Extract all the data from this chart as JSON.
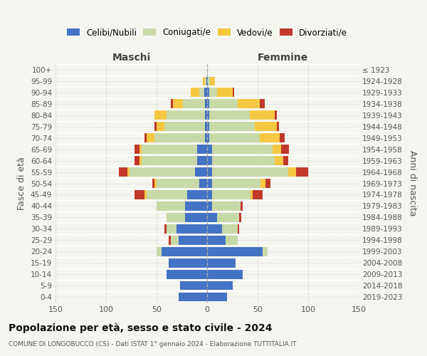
{
  "age_groups_bottom_to_top": [
    "0-4",
    "5-9",
    "10-14",
    "15-19",
    "20-24",
    "25-29",
    "30-34",
    "35-39",
    "40-44",
    "45-49",
    "50-54",
    "55-59",
    "60-64",
    "65-69",
    "70-74",
    "75-79",
    "80-84",
    "85-89",
    "90-94",
    "95-99",
    "100+"
  ],
  "birth_years_bottom_to_top": [
    "2019-2023",
    "2014-2018",
    "2009-2013",
    "2004-2008",
    "1999-2003",
    "1994-1998",
    "1989-1993",
    "1984-1988",
    "1979-1983",
    "1974-1978",
    "1969-1973",
    "1964-1968",
    "1959-1963",
    "1954-1958",
    "1949-1953",
    "1944-1948",
    "1939-1943",
    "1934-1938",
    "1929-1933",
    "1924-1928",
    "≤ 1923"
  ],
  "colors": {
    "celibi": "#4472c4",
    "coniugati": "#c8d9a8",
    "vedovi": "#f5c842",
    "divorziati": "#c0392b"
  },
  "males": {
    "celibi": [
      28,
      27,
      40,
      38,
      45,
      28,
      30,
      22,
      22,
      20,
      8,
      12,
      10,
      10,
      2,
      2,
      2,
      2,
      3,
      1,
      0
    ],
    "coniugati": [
      0,
      0,
      0,
      0,
      5,
      8,
      10,
      18,
      28,
      40,
      42,
      65,
      55,
      55,
      50,
      40,
      38,
      22,
      5,
      1,
      0
    ],
    "vedovi": [
      0,
      0,
      0,
      0,
      0,
      0,
      0,
      0,
      0,
      2,
      2,
      2,
      2,
      2,
      8,
      8,
      12,
      10,
      8,
      2,
      0
    ],
    "divorziati": [
      0,
      0,
      0,
      0,
      0,
      2,
      2,
      0,
      0,
      10,
      2,
      8,
      5,
      5,
      2,
      2,
      0,
      2,
      0,
      0,
      0
    ]
  },
  "females": {
    "nubili": [
      20,
      25,
      35,
      28,
      55,
      18,
      15,
      10,
      5,
      5,
      5,
      5,
      5,
      5,
      2,
      2,
      2,
      2,
      2,
      1,
      0
    ],
    "coniugati": [
      0,
      0,
      0,
      0,
      5,
      12,
      15,
      22,
      28,
      38,
      48,
      75,
      62,
      60,
      50,
      45,
      40,
      28,
      8,
      2,
      0
    ],
    "vedovi": [
      0,
      0,
      0,
      0,
      0,
      0,
      0,
      0,
      0,
      2,
      5,
      8,
      8,
      8,
      20,
      22,
      25,
      22,
      15,
      5,
      0
    ],
    "divorziati": [
      0,
      0,
      0,
      0,
      0,
      0,
      2,
      2,
      2,
      10,
      5,
      12,
      5,
      8,
      5,
      2,
      2,
      5,
      2,
      0,
      0
    ]
  },
  "title": "Popolazione per età, sesso e stato civile - 2024",
  "subtitle": "COMUNE DI LONGOBUCCO (CS) - Dati ISTAT 1° gennaio 2024 - Elaborazione TUTTITALIA.IT",
  "ylabel_left": "Fasce di età",
  "ylabel_right": "Anni di nascita",
  "xlabel_left": "Maschi",
  "xlabel_right": "Femmine",
  "xlim": 150,
  "background_color": "#f5f5f0",
  "grid_color": "#cccccc"
}
